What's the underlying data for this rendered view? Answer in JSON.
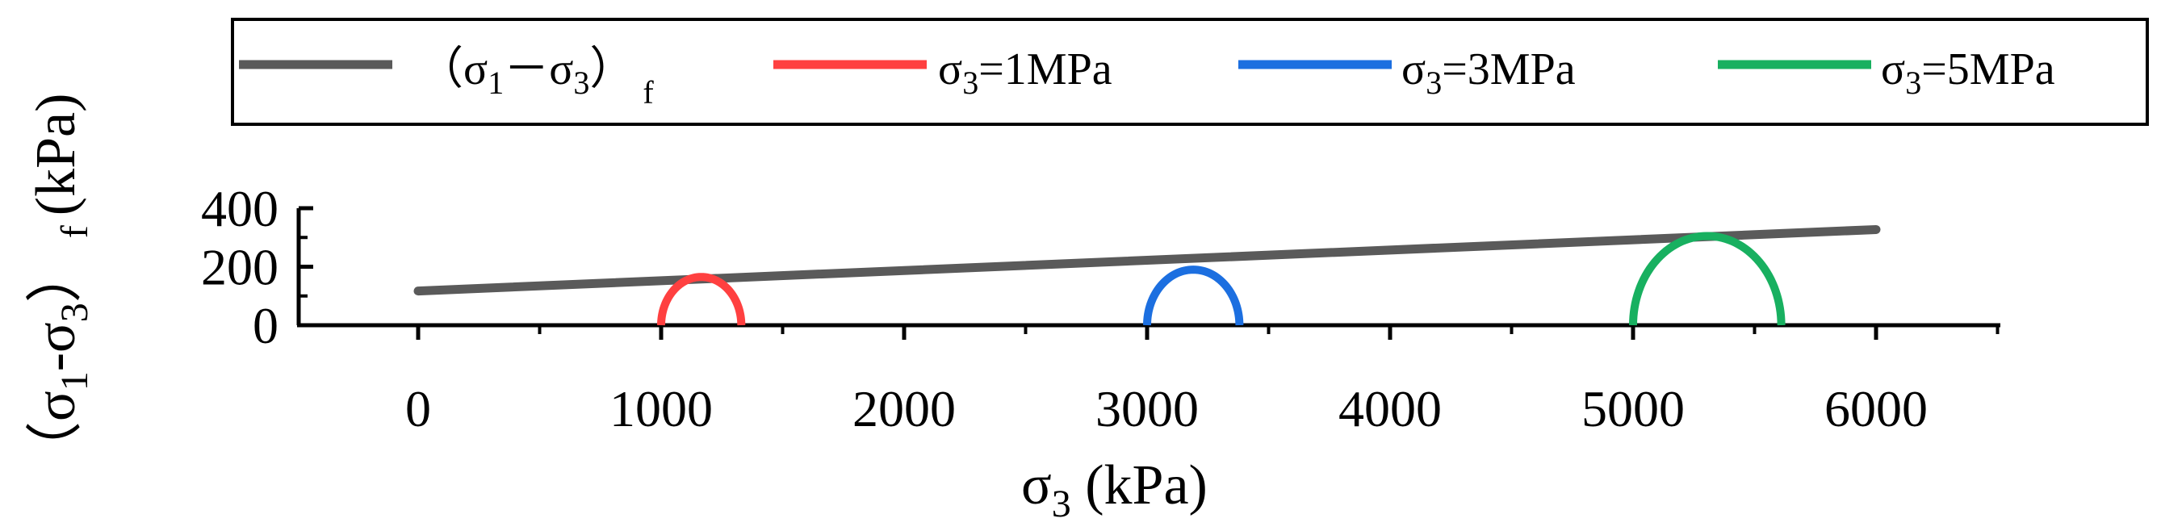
{
  "chart_data": {
    "type": "line",
    "title": "",
    "xlabel": {
      "main": "σ",
      "sub": "3",
      "rest": " (kPa)"
    },
    "ylabel": {
      "pre": "（σ",
      "sub1": "1",
      "mid": "-σ",
      "sub2": "3",
      "close": "）",
      "subf": "f",
      "rest": "(kPa)"
    },
    "xlim": [
      -350,
      6500
    ],
    "ylim": [
      0,
      400
    ],
    "x_ticks": [
      0,
      1000,
      2000,
      3000,
      4000,
      5000,
      6000
    ],
    "x_tick_labels": [
      "0",
      "1000",
      "2000",
      "3000",
      "4000",
      "5000",
      "6000"
    ],
    "y_ticks": [
      0,
      200,
      400
    ],
    "y_tick_labels": [
      "0",
      "200",
      "400"
    ],
    "envelope": {
      "name": "（σ1－σ3）f",
      "color": "#5a5a5a",
      "x": [
        0,
        6000
      ],
      "y": [
        117,
        327
      ]
    },
    "circles": [
      {
        "name": "σ3=1MPa",
        "color": "#ff4040",
        "sigma3": 1000,
        "sigma1": 1330
      },
      {
        "name": "σ3=3MPa",
        "color": "#1c6fe0",
        "sigma3": 3000,
        "sigma1": 3380
      },
      {
        "name": "σ3=5MPa",
        "color": "#18b060",
        "sigma3": 5000,
        "sigma1": 5610
      }
    ],
    "legend": {
      "position": "top-right",
      "items": [
        {
          "pre": "（σ",
          "sub1": "1",
          "mid": "－σ",
          "sub2": "3",
          "close": "）",
          "subf": "f",
          "color": "#5a5a5a"
        },
        {
          "main": "σ",
          "sub": "3",
          "rest": "=1MPa",
          "color": "#ff4040"
        },
        {
          "main": "σ",
          "sub": "3",
          "rest": "=3MPa",
          "color": "#1c6fe0"
        },
        {
          "main": "σ",
          "sub": "3",
          "rest": "=5MPa",
          "color": "#18b060"
        }
      ]
    }
  }
}
